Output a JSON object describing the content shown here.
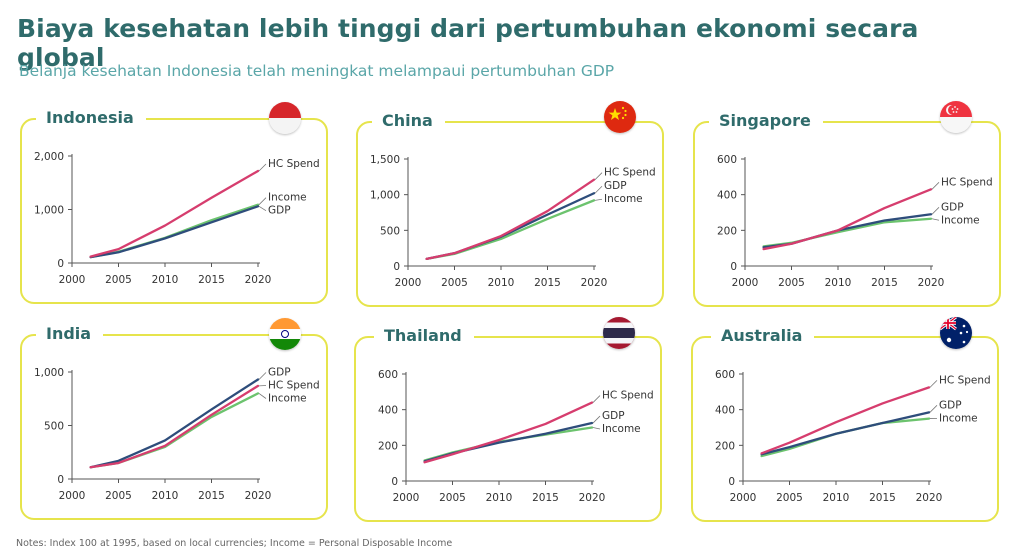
{
  "title": "Biaya kesehatan lebih tinggi dari pertumbuhan ekonomi secara global",
  "subtitle": "Belanja kesehatan Indonesia telah meningkat melampaui pertumbuhan GDP",
  "footnote": "Notes: Index 100 at 1995, based on local currencies; Income = Personal Disposable Income",
  "colors": {
    "title": "#2f6b6b",
    "subtitle": "#5aa6a8",
    "panel_border": "#e6e44c",
    "hc_spend": "#d63d6e",
    "gdp": "#2e4d7b",
    "income": "#6cc36e"
  },
  "chart_data": [
    {
      "type": "line",
      "title": "Indonesia",
      "flag": "indonesia-flag",
      "x": [
        2002,
        2005,
        2010,
        2015,
        2020
      ],
      "xticks": [
        "2000",
        "2005",
        "2010",
        "2015",
        "2020"
      ],
      "xlim": [
        2000,
        2020
      ],
      "yticks": [
        "0",
        "1,000",
        "2,000"
      ],
      "yticks_values": [
        0,
        1000,
        2000
      ],
      "ylim": [
        0,
        2000
      ],
      "series": [
        {
          "name": "HC Spend",
          "values": [
            120,
            260,
            700,
            1220,
            1720
          ]
        },
        {
          "name": "Income",
          "values": [
            110,
            210,
            470,
            800,
            1090
          ]
        },
        {
          "name": "GDP",
          "values": [
            110,
            200,
            460,
            760,
            1060
          ]
        }
      ],
      "label_order": [
        "HC Spend",
        "Income",
        "GDP"
      ]
    },
    {
      "type": "line",
      "title": "China",
      "flag": "china-flag",
      "x": [
        2002,
        2005,
        2010,
        2015,
        2020
      ],
      "xticks": [
        "2000",
        "2005",
        "2010",
        "2015",
        "2020"
      ],
      "xlim": [
        2000,
        2020
      ],
      "yticks": [
        "0",
        "500",
        "1,000",
        "1,500"
      ],
      "yticks_values": [
        0,
        500,
        1000,
        1500
      ],
      "ylim": [
        0,
        1500
      ],
      "series": [
        {
          "name": "HC Spend",
          "values": [
            100,
            180,
            420,
            770,
            1210
          ]
        },
        {
          "name": "GDP",
          "values": [
            100,
            180,
            410,
            720,
            1020
          ]
        },
        {
          "name": "Income",
          "values": [
            100,
            170,
            380,
            660,
            920
          ]
        }
      ],
      "label_order": [
        "HC Spend",
        "GDP",
        "Income"
      ]
    },
    {
      "type": "line",
      "title": "Singapore",
      "flag": "singapore-flag",
      "x": [
        2002,
        2005,
        2010,
        2015,
        2020
      ],
      "xticks": [
        "2000",
        "2005",
        "2010",
        "2015",
        "2020"
      ],
      "xlim": [
        2000,
        2020
      ],
      "yticks": [
        "0",
        "200",
        "400",
        "600"
      ],
      "yticks_values": [
        0,
        200,
        400,
        600
      ],
      "ylim": [
        0,
        600
      ],
      "series": [
        {
          "name": "HC Spend",
          "values": [
            95,
            125,
            200,
            325,
            430
          ]
        },
        {
          "name": "GDP",
          "values": [
            105,
            125,
            200,
            255,
            290
          ]
        },
        {
          "name": "Income",
          "values": [
            110,
            130,
            190,
            245,
            265
          ]
        }
      ],
      "label_order": [
        "HC Spend",
        "GDP",
        "Income"
      ]
    },
    {
      "type": "line",
      "title": "India",
      "flag": "india-flag",
      "x": [
        2002,
        2005,
        2010,
        2015,
        2020
      ],
      "xticks": [
        "2000",
        "2005",
        "2010",
        "2015",
        "2020"
      ],
      "xlim": [
        2000,
        2020
      ],
      "yticks": [
        "0",
        "500",
        "1,000"
      ],
      "yticks_values": [
        0,
        500,
        1000
      ],
      "ylim": [
        0,
        1000
      ],
      "series": [
        {
          "name": "GDP",
          "values": [
            110,
            170,
            360,
            650,
            930
          ]
        },
        {
          "name": "HC Spend",
          "values": [
            110,
            150,
            310,
            600,
            870
          ]
        },
        {
          "name": "Income",
          "values": [
            110,
            150,
            300,
            580,
            800
          ]
        }
      ],
      "label_order": [
        "GDP",
        "HC Spend",
        "Income"
      ]
    },
    {
      "type": "line",
      "title": "Thailand",
      "flag": "thailand-flag",
      "x": [
        2002,
        2005,
        2010,
        2015,
        2020
      ],
      "xticks": [
        "2000",
        "2005",
        "2010",
        "2015",
        "2020"
      ],
      "xlim": [
        2000,
        2020
      ],
      "yticks": [
        "0",
        "200",
        "400",
        "600"
      ],
      "yticks_values": [
        0,
        200,
        400,
        600
      ],
      "ylim": [
        0,
        600
      ],
      "series": [
        {
          "name": "HC Spend",
          "values": [
            105,
            150,
            230,
            320,
            440
          ]
        },
        {
          "name": "GDP",
          "values": [
            110,
            155,
            215,
            265,
            325
          ]
        },
        {
          "name": "Income",
          "values": [
            115,
            160,
            220,
            260,
            300
          ]
        }
      ],
      "label_order": [
        "HC Spend",
        "GDP",
        "Income"
      ]
    },
    {
      "type": "line",
      "title": "Australia",
      "flag": "australia-flag",
      "x": [
        2002,
        2005,
        2010,
        2015,
        2020
      ],
      "xticks": [
        "2000",
        "2005",
        "2010",
        "2015",
        "2020"
      ],
      "xlim": [
        2000,
        2020
      ],
      "yticks": [
        "0",
        "200",
        "400",
        "600"
      ],
      "yticks_values": [
        0,
        200,
        400,
        600
      ],
      "ylim": [
        0,
        600
      ],
      "series": [
        {
          "name": "HC Spend",
          "values": [
            155,
            215,
            330,
            435,
            525
          ]
        },
        {
          "name": "GDP",
          "values": [
            150,
            190,
            265,
            325,
            385
          ]
        },
        {
          "name": "Income",
          "values": [
            140,
            180,
            265,
            325,
            350
          ]
        }
      ],
      "label_order": [
        "HC Spend",
        "GDP",
        "Income"
      ]
    }
  ]
}
